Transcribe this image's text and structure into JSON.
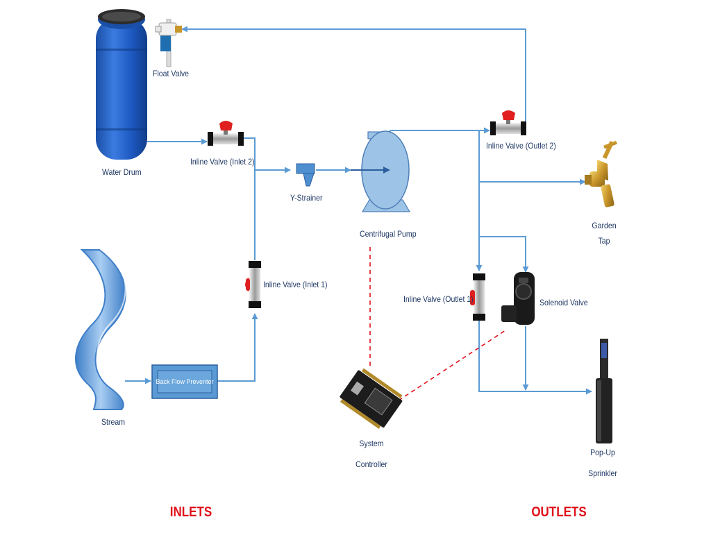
{
  "diagram": {
    "components": {
      "water_drum": "Water Drum",
      "float_valve": "Float Valve",
      "inline_valve_inlet2": "Inline Valve (Inlet 2)",
      "y_strainer": "Y-Strainer",
      "centrifugal_pump": "Centrifugal Pump",
      "inline_valve_outlet2": "Inline Valve (Outlet 2)",
      "garden_tap_line1": "Garden",
      "garden_tap_line2": "Tap",
      "stream": "Stream",
      "back_flow_preventer": "Back Flow Preventer",
      "inline_valve_inlet1": "Inline Valve (Inlet 1)",
      "inline_valve_outlet1": "Inline Valve (Outlet 1)",
      "solenoid_valve": "Solenoid Valve",
      "system_controller_line1": "System",
      "system_controller_line2": "Controller",
      "sprinkler_line1": "Pop-Up",
      "sprinkler_line2": "Sprinkler"
    },
    "sections": {
      "inlets": "INLETS",
      "outlets": "OUTLETS"
    },
    "colors": {
      "pipe": "#5b9bd5",
      "control_line": "#e0101a",
      "label_text": "#1f3864",
      "section_heading": "#e0101a",
      "drum": "#1f5fbf",
      "pump": "#9dc3e6"
    },
    "icons": [
      "drum-icon",
      "float-valve-icon",
      "ball-valve-icon",
      "y-strainer-icon",
      "pump-icon",
      "garden-tap-icon",
      "stream-icon",
      "backflow-preventer-icon",
      "solenoid-valve-icon",
      "controller-board-icon",
      "sprinkler-icon"
    ]
  }
}
